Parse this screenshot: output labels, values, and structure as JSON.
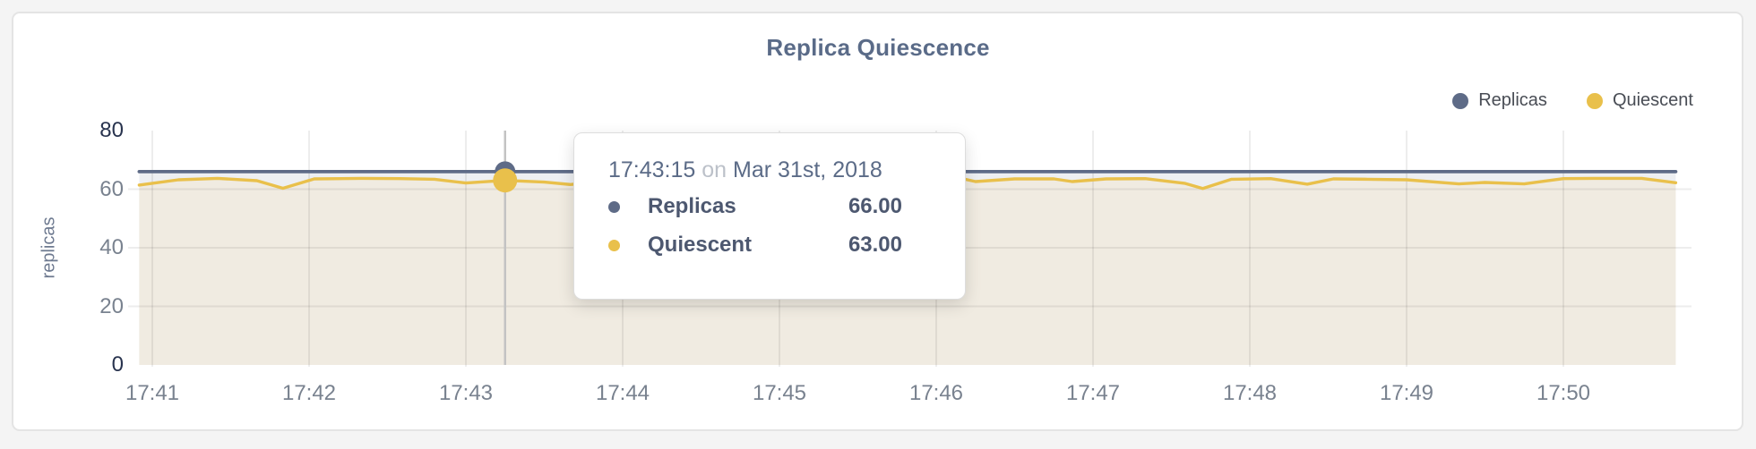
{
  "page": {
    "background": "#f4f4f4",
    "card_background": "#ffffff",
    "card_border": "#e4e4e4"
  },
  "chart_data": {
    "type": "line",
    "title": "Replica Quiescence",
    "xlabel": "",
    "ylabel": "replicas",
    "x_unit": "seconds after 17:41:00",
    "ylim": [
      0,
      80
    ],
    "grid": "light",
    "legend_position": "top-right",
    "x_axis": {
      "ticks": [
        {
          "t": 0,
          "label": "17:41"
        },
        {
          "t": 60,
          "label": "17:42"
        },
        {
          "t": 120,
          "label": "17:43"
        },
        {
          "t": 180,
          "label": "17:44"
        },
        {
          "t": 240,
          "label": "17:45"
        },
        {
          "t": 300,
          "label": "17:46"
        },
        {
          "t": 360,
          "label": "17:47"
        },
        {
          "t": 420,
          "label": "17:48"
        },
        {
          "t": 480,
          "label": "17:49"
        },
        {
          "t": 540,
          "label": "17:50"
        }
      ]
    },
    "y_axis": {
      "ticks": [
        {
          "v": 0,
          "label": "0",
          "strong": true,
          "grid": false
        },
        {
          "v": 20,
          "label": "20",
          "strong": false,
          "grid": true
        },
        {
          "v": 40,
          "label": "40",
          "strong": false,
          "grid": true
        },
        {
          "v": 60,
          "label": "60",
          "strong": false,
          "grid": true
        },
        {
          "v": 80,
          "label": "80",
          "strong": true,
          "grid": false
        }
      ]
    },
    "series": [
      {
        "name": "Replicas",
        "color": "#5e6b87",
        "fill": "#edeff2",
        "points": [
          [
            -5,
            66
          ],
          [
            583,
            66
          ]
        ]
      },
      {
        "name": "Quiescent",
        "color": "#e9c04b",
        "fill": "#f0ebe1",
        "points": [
          [
            -5,
            61.4
          ],
          [
            10,
            63.2
          ],
          [
            25,
            63.7
          ],
          [
            40,
            62.9
          ],
          [
            50,
            60.3
          ],
          [
            62,
            63.5
          ],
          [
            80,
            63.7
          ],
          [
            95,
            63.6
          ],
          [
            108,
            63.4
          ],
          [
            120,
            62.1
          ],
          [
            135,
            63.0
          ],
          [
            150,
            62.4
          ],
          [
            160,
            61.6
          ],
          [
            175,
            62.9
          ],
          [
            190,
            63.4
          ],
          [
            205,
            63.2
          ],
          [
            220,
            62.7
          ],
          [
            235,
            63.4
          ],
          [
            250,
            63.3
          ],
          [
            265,
            62.9
          ],
          [
            280,
            63.5
          ],
          [
            295,
            63.4
          ],
          [
            308,
            64.0
          ],
          [
            315,
            62.6
          ],
          [
            330,
            63.5
          ],
          [
            345,
            63.5
          ],
          [
            352,
            62.6
          ],
          [
            365,
            63.5
          ],
          [
            380,
            63.6
          ],
          [
            395,
            62.0
          ],
          [
            402,
            60.2
          ],
          [
            413,
            63.4
          ],
          [
            428,
            63.6
          ],
          [
            442,
            61.7
          ],
          [
            452,
            63.5
          ],
          [
            465,
            63.4
          ],
          [
            480,
            63.2
          ],
          [
            500,
            61.8
          ],
          [
            510,
            62.3
          ],
          [
            525,
            61.8
          ],
          [
            540,
            63.6
          ],
          [
            555,
            63.7
          ],
          [
            570,
            63.7
          ],
          [
            583,
            62.2
          ]
        ]
      }
    ],
    "highlight": {
      "t": 135,
      "time": "17:43:15",
      "connector": "on",
      "date": "Mar 31st, 2018",
      "rows": [
        {
          "label": "Replicas",
          "value": "66.00",
          "color": "#5e6b87"
        },
        {
          "label": "Quiescent",
          "value": "63.00",
          "color": "#e9c04b"
        }
      ]
    }
  }
}
